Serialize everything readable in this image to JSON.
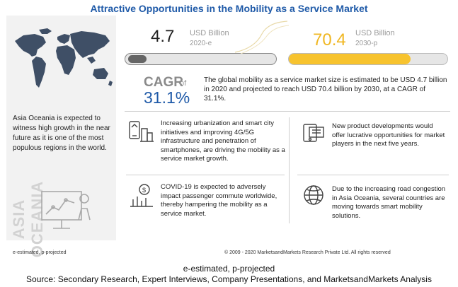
{
  "title": "Attractive Opportunities in the Mobility as a Service Market",
  "left": {
    "text": "Asia Oceania is expected to witness high growth in the near future as it is one of the most populous regions in the world.",
    "vertical_label": "ASIA OCEANIA"
  },
  "stats": {
    "v2020": "4.7",
    "unit1": "USD Billion",
    "year1": "2020-e",
    "v2030": "70.4",
    "unit2": "USD Billion",
    "year2": "2030-p"
  },
  "cagr": {
    "label": "CAGR",
    "of": "of",
    "value": "31.1%",
    "description": "The global mobility as a service market size is estimated to be USD 4.7 billion in 2020 and projected to reach USD 70.4 billion by 2030, at a CAGR of 31.1%."
  },
  "cards": {
    "c1": "Increasing urbanization and smart city initiatives and improving 4G/5G infrastructure and penetration of smartphones, are driving the mobility as a service market growth.",
    "c2": "New product developments would offer lucrative opportunities for market players in the next five years.",
    "c3": "COVID-19 is expected to adversely impact passenger commute worldwide, thereby hampering the mobility as a service market.",
    "c4": "Due to the increasing road congestion in Asia Oceania, several countries are moving towards smart mobility solutions."
  },
  "footer": {
    "left": "e-estimated, p-projected",
    "copyright": "© 2009 - 2020 MarketsandMarkets Research Private Ltd. All rights reserved",
    "caption1": "e-estimated, p-projected",
    "caption2": "Source: Secondary Research, Expert Interviews, Company Presentations, and MarketsandMarkets Analysis"
  },
  "colors": {
    "title": "#1f5aa8",
    "gold": "#f7c32e",
    "gray_bar": "#666666"
  }
}
